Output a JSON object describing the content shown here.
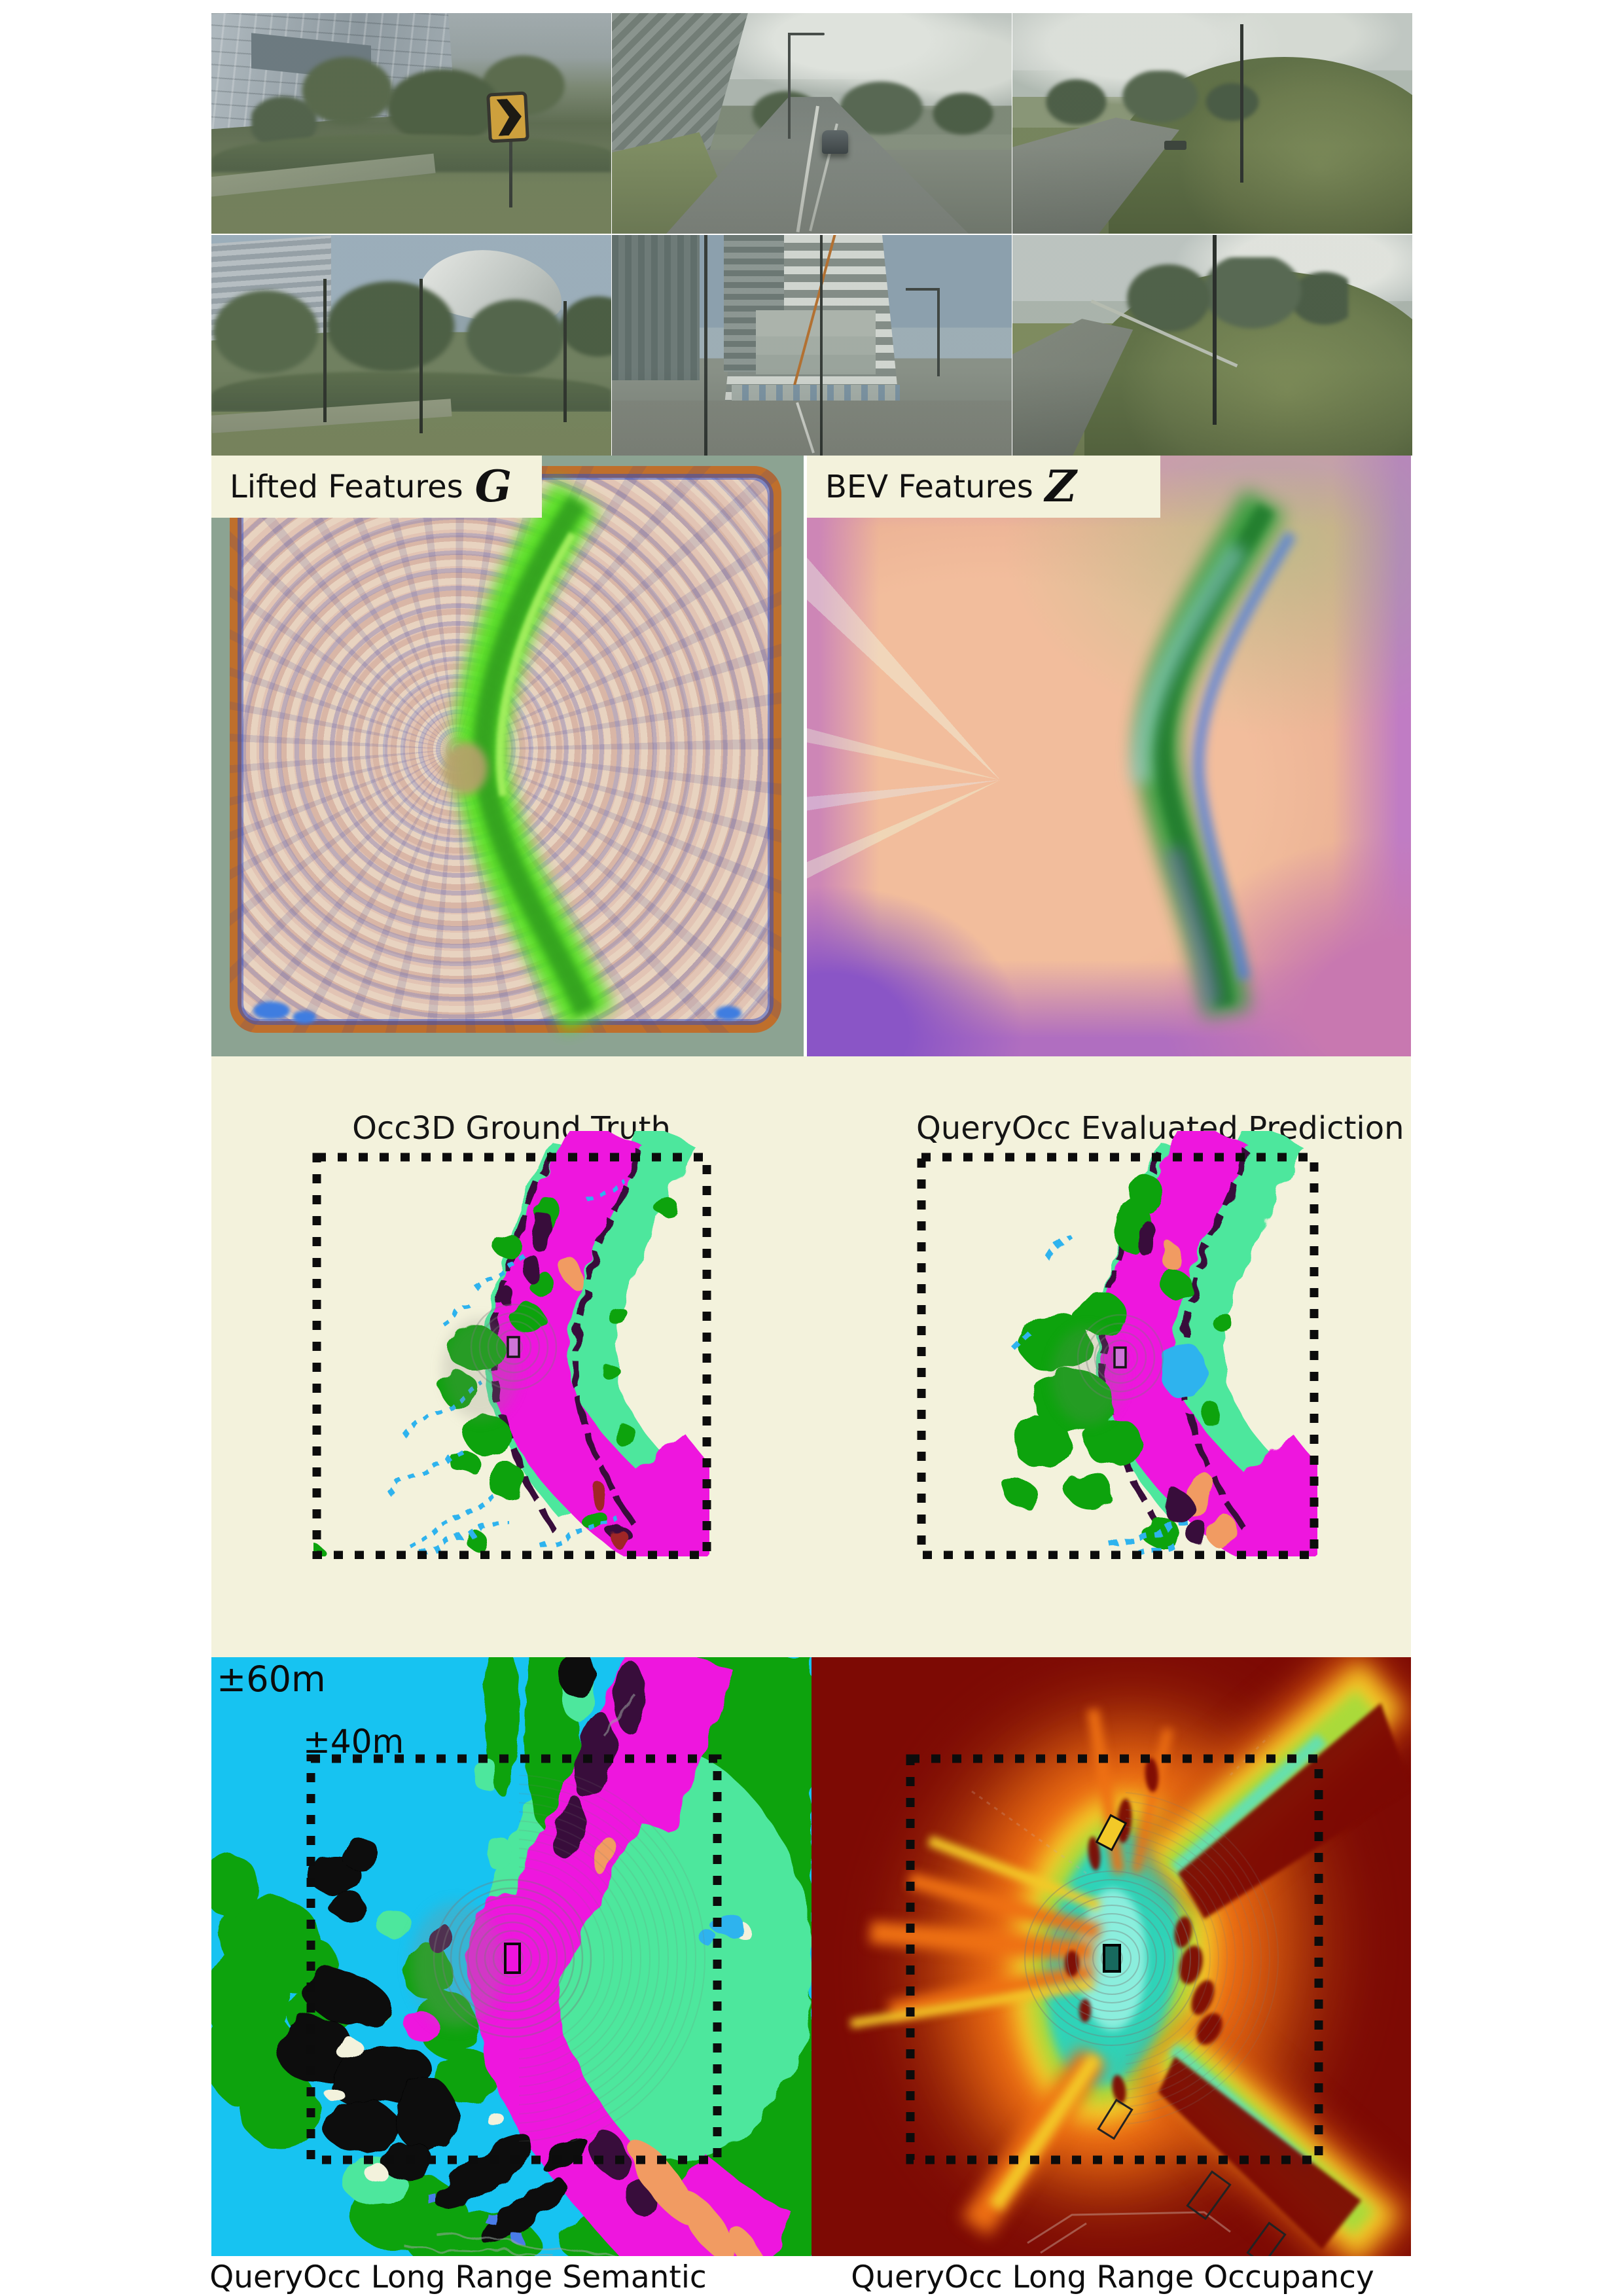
{
  "features": {
    "lifted": {
      "label": "Lifted Features",
      "symbol": "G"
    },
    "bev": {
      "label": "BEV Features",
      "symbol": "Z"
    }
  },
  "mid": {
    "gt_title": "Occ3D Ground Truth",
    "pred_title": "QueryOcc Evaluated Prediction"
  },
  "bottom": {
    "outer_range": "±60m",
    "inner_range": "±40m",
    "semantic_caption": "QueryOcc Long Range Semantic",
    "occupancy_caption": "QueryOcc Long Range Occupancy"
  },
  "colors": {
    "cream": "#f3f2dc",
    "cyan_bg": "#17c3f1",
    "veg_green": "#0ca30a",
    "terrain_green": "#4de79d",
    "road_magenta": "#ee13de",
    "manmade_black": "#070707",
    "dark_purple": "#390f3b",
    "vehicle_orange": "#f19b62",
    "speckle_cyan": "#2fb3ee",
    "occ_maroon": "#7d0a04",
    "heat_orange": "#ee7013",
    "heat_yellow": "#f3c928",
    "heat_green": "#aada3a",
    "heat_teal": "#2fd3b8",
    "ego_teal": "#17695e",
    "ego_violet": "#cf74d8",
    "sage": "#8ca392",
    "frame_orange": "#bf6f2c"
  }
}
